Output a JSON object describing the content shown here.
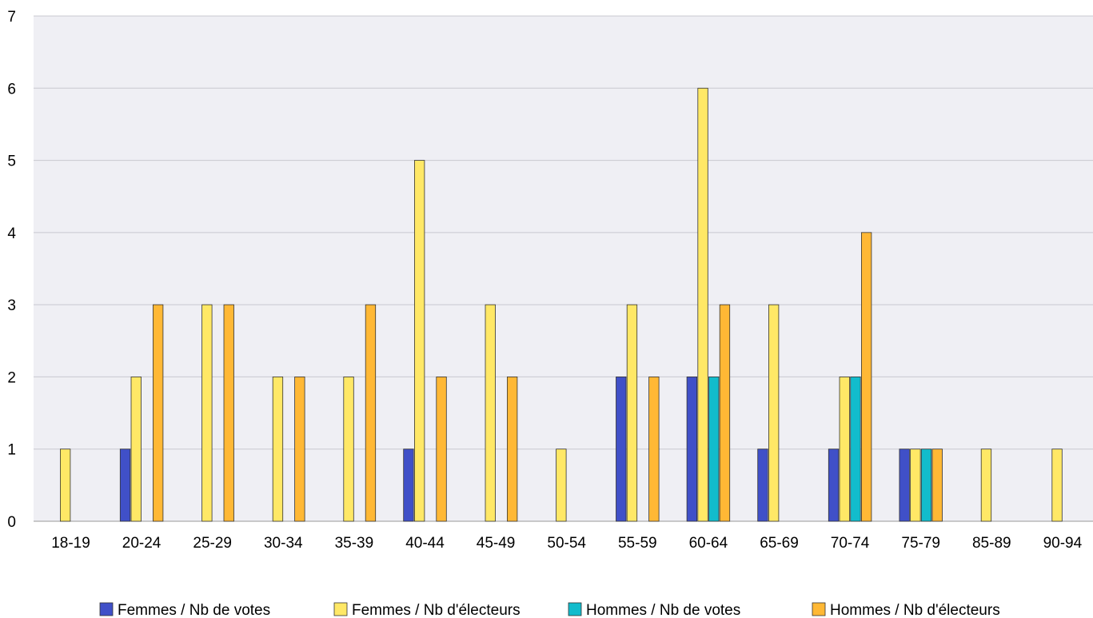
{
  "chart_data": {
    "type": "bar",
    "title": "",
    "xlabel": "",
    "ylabel": "",
    "ylim": [
      0,
      7
    ],
    "yticks": [
      0,
      1,
      2,
      3,
      4,
      5,
      6,
      7
    ],
    "grid": true,
    "legend_position": "bottom",
    "categories": [
      "18-19",
      "20-24",
      "25-29",
      "30-34",
      "35-39",
      "40-44",
      "45-49",
      "50-54",
      "55-59",
      "60-64",
      "65-69",
      "70-74",
      "75-79",
      "85-89",
      "90-94"
    ],
    "series": [
      {
        "name": "Femmes / Nb de votes",
        "color": "#4050c8",
        "values": [
          0,
          1,
          0,
          0,
          0,
          1,
          0,
          0,
          2,
          2,
          1,
          1,
          1,
          0,
          0
        ]
      },
      {
        "name": "Femmes / Nb d'électeurs",
        "color": "#ffe866",
        "values": [
          1,
          2,
          3,
          2,
          2,
          5,
          3,
          1,
          3,
          6,
          3,
          2,
          1,
          1,
          1
        ]
      },
      {
        "name": "Hommes / Nb de votes",
        "color": "#12bccc",
        "values": [
          0,
          0,
          0,
          0,
          0,
          0,
          0,
          0,
          0,
          2,
          0,
          2,
          1,
          0,
          0
        ]
      },
      {
        "name": "Hommes / Nb d'électeurs",
        "color": "#ffb835",
        "values": [
          0,
          3,
          3,
          2,
          3,
          2,
          2,
          0,
          2,
          3,
          0,
          4,
          1,
          0,
          0
        ]
      }
    ],
    "colors": {
      "plot_background": "#efeff4",
      "gridline": "#c8c8d0",
      "bar_outline": "#333333"
    }
  }
}
